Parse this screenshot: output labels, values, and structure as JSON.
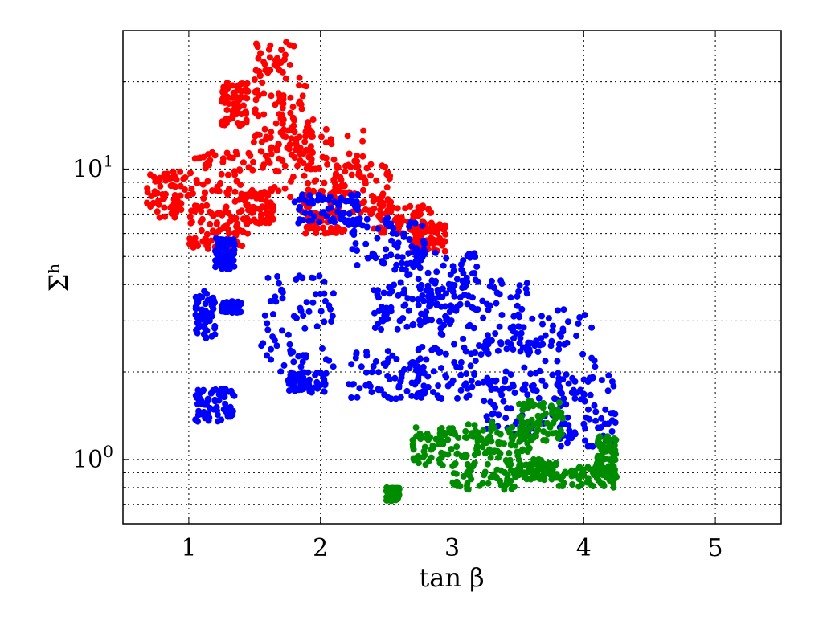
{
  "chart_data": {
    "type": "scatter",
    "title": "",
    "xlabel": "tan β",
    "ylabel": "Σʰ",
    "xlim": [
      0.5,
      5.5
    ],
    "ylim": [
      0.6,
      30
    ],
    "yscale": "log",
    "grid": true,
    "x_ticks": [
      "1",
      "2",
      "3",
      "4",
      "5"
    ],
    "y_ticks": [
      {
        "value": 1,
        "base": "10",
        "exp": "0"
      },
      {
        "value": 10,
        "base": "10",
        "exp": "1"
      }
    ],
    "series": [
      {
        "color": "#ff0000",
        "clusters": [
          {
            "x": [
              0.68,
              1.0
            ],
            "y": [
              6.8,
              9.8
            ]
          },
          {
            "x": [
              1.0,
              1.5
            ],
            "y": [
              7.0,
              11.5
            ]
          },
          {
            "x": [
              1.0,
              1.45
            ],
            "y": [
              5.3,
              7.2
            ]
          },
          {
            "x": [
              1.4,
              1.65
            ],
            "y": [
              6.5,
              8.5
            ]
          },
          {
            "x": [
              1.45,
              1.95
            ],
            "y": [
              10.0,
              15.0
            ]
          },
          {
            "x": [
              1.5,
              1.9
            ],
            "y": [
              15.0,
              28.5
            ]
          },
          {
            "x": [
              1.25,
              1.45
            ],
            "y": [
              14.0,
              20.0
            ]
          },
          {
            "x": [
              1.6,
              2.35
            ],
            "y": [
              8.0,
              14.0
            ]
          },
          {
            "x": [
              2.1,
              2.55
            ],
            "y": [
              7.0,
              10.5
            ]
          },
          {
            "x": [
              2.4,
              2.85
            ],
            "y": [
              6.0,
              7.5
            ]
          },
          {
            "x": [
              2.7,
              2.95
            ],
            "y": [
              5.2,
              6.6
            ]
          },
          {
            "x": [
              1.85,
              2.2
            ],
            "y": [
              6.0,
              8.5
            ]
          }
        ]
      },
      {
        "color": "#0000ff",
        "clusters": [
          {
            "x": [
              1.2,
              1.35
            ],
            "y": [
              4.5,
              5.8
            ]
          },
          {
            "x": [
              1.05,
              1.2
            ],
            "y": [
              2.6,
              3.8
            ]
          },
          {
            "x": [
              1.25,
              1.4
            ],
            "y": [
              3.2,
              3.5
            ]
          },
          {
            "x": [
              1.05,
              1.35
            ],
            "y": [
              1.35,
              1.75
            ]
          },
          {
            "x": [
              1.8,
              2.3
            ],
            "y": [
              6.5,
              8.2
            ]
          },
          {
            "x": [
              2.2,
              2.8
            ],
            "y": [
              4.5,
              6.8
            ]
          },
          {
            "x": [
              2.6,
              3.2
            ],
            "y": [
              3.2,
              5.2
            ]
          },
          {
            "x": [
              2.9,
              3.6
            ],
            "y": [
              2.3,
              4.2
            ]
          },
          {
            "x": [
              3.4,
              4.1
            ],
            "y": [
              1.9,
              3.3
            ]
          },
          {
            "x": [
              3.8,
              4.25
            ],
            "y": [
              1.1,
              1.95
            ]
          },
          {
            "x": [
              3.2,
              3.9
            ],
            "y": [
              1.2,
              1.9
            ]
          },
          {
            "x": [
              2.7,
              3.3
            ],
            "y": [
              1.6,
              2.5
            ]
          },
          {
            "x": [
              1.55,
              2.1
            ],
            "y": [
              2.0,
              4.3
            ]
          },
          {
            "x": [
              2.2,
              2.8
            ],
            "y": [
              1.6,
              2.4
            ]
          },
          {
            "x": [
              1.75,
              2.05
            ],
            "y": [
              1.7,
              2.0
            ]
          },
          {
            "x": [
              2.4,
              3.0
            ],
            "y": [
              2.8,
              4.0
            ]
          }
        ]
      },
      {
        "color": "#008c00",
        "clusters": [
          {
            "x": [
              2.7,
              3.05
            ],
            "y": [
              0.95,
              1.3
            ]
          },
          {
            "x": [
              3.0,
              3.5
            ],
            "y": [
              0.78,
              1.05
            ]
          },
          {
            "x": [
              3.1,
              3.6
            ],
            "y": [
              1.05,
              1.35
            ]
          },
          {
            "x": [
              3.5,
              3.85
            ],
            "y": [
              1.15,
              1.6
            ]
          },
          {
            "x": [
              3.8,
              4.25
            ],
            "y": [
              0.8,
              0.95
            ]
          },
          {
            "x": [
              4.1,
              4.25
            ],
            "y": [
              0.9,
              1.2
            ]
          },
          {
            "x": [
              2.5,
              2.6
            ],
            "y": [
              0.72,
              0.8
            ]
          },
          {
            "x": [
              3.5,
              3.8
            ],
            "y": [
              0.85,
              1.0
            ]
          }
        ]
      }
    ]
  }
}
